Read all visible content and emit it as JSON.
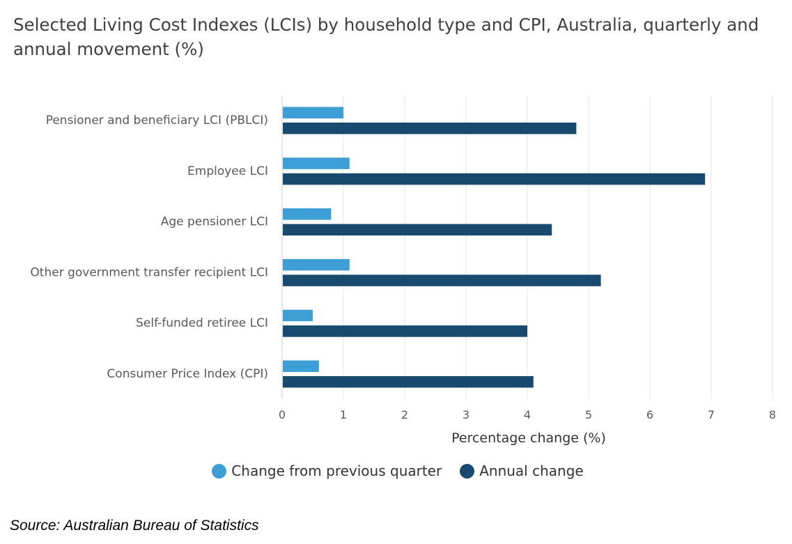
{
  "title": "Selected Living Cost Indexes (LCIs) by household type and CPI, Australia, quarterly and annual movement (%)",
  "source": "Source: Australian Bureau of Statistics",
  "colors": {
    "quarter": "#3d9fd6",
    "annual": "#174a6e",
    "grid": "#e3e3e3"
  },
  "chart_data": {
    "type": "bar",
    "orientation": "horizontal",
    "categories": [
      "Pensioner and beneficiary LCI (PBLCI)",
      "Employee LCI",
      "Age pensioner LCI",
      "Other government transfer recipient LCI",
      "Self-funded retiree LCI",
      "Consumer Price Index (CPI)"
    ],
    "series": [
      {
        "name": "Change from previous quarter",
        "color_key": "quarter",
        "values": [
          1.0,
          1.1,
          0.8,
          1.1,
          0.5,
          0.6
        ]
      },
      {
        "name": "Annual change",
        "color_key": "annual",
        "values": [
          4.8,
          6.9,
          4.4,
          5.2,
          4.0,
          4.1
        ]
      }
    ],
    "xlabel": "Percentage change (%)",
    "ylabel": "",
    "xlim": [
      0,
      8
    ],
    "ticks": [
      "0",
      "1",
      "2",
      "3",
      "4",
      "5",
      "6",
      "7",
      "8"
    ],
    "grid": true,
    "legend_position": "bottom"
  }
}
